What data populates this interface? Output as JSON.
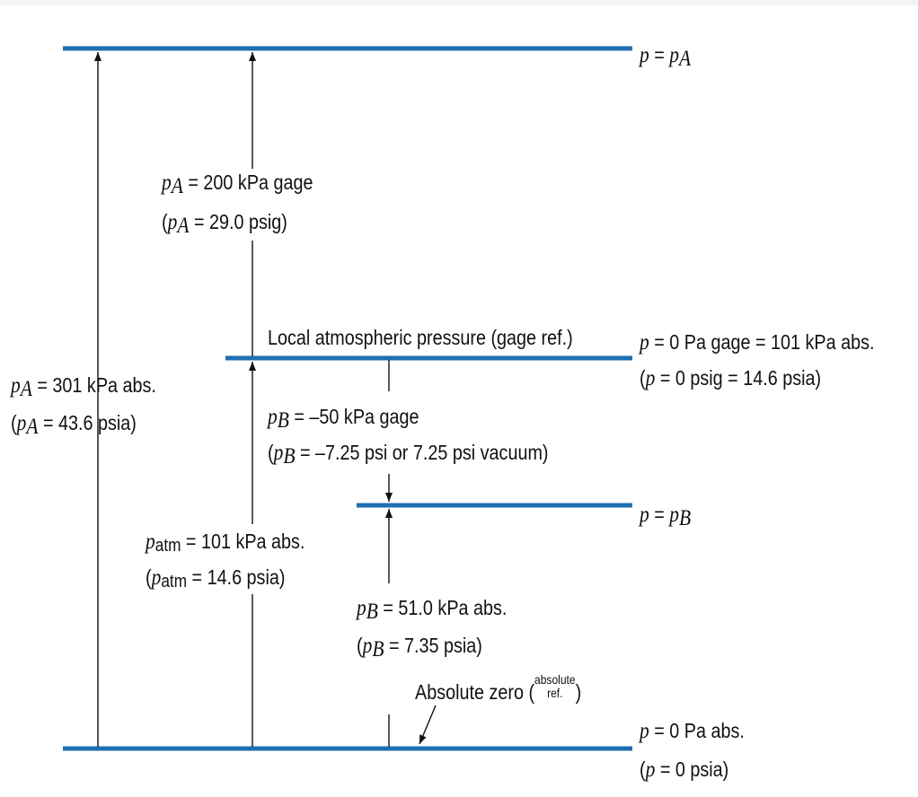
{
  "levels": {
    "pa": {
      "symbol": "p",
      "equals": " = ",
      "sub": "A"
    },
    "local": {
      "title": "Local atmospheric pressure (gage ref.)",
      "line1_prefix": " = 0 Pa gage = 101 kPa abs.",
      "line2_prefix": " = 0 psig = 14.6 psia)"
    },
    "pb": {
      "symbol": "p",
      "equals": " = ",
      "sub": "B"
    },
    "zero": {
      "title": "Absolute zero (",
      "title_small_top": "absolute",
      "title_small_bottom": "ref.",
      "title_close": ")",
      "line1": " = 0 Pa abs.",
      "line2": " = 0 psia)"
    }
  },
  "measures": {
    "pa_abs": {
      "line1": " = 301 kPa abs.",
      "line2": " = 43.6 psia)"
    },
    "pa_gage": {
      "line1": " = 200 kPa gage",
      "line2": " = 29.0 psig)"
    },
    "pb_gage": {
      "line1": " = –50 kPa gage",
      "line2": " = –7.25 psi or 7.25 psi vacuum)"
    },
    "patm_abs": {
      "sub": "atm",
      "line1": " = 101 kPa abs.",
      "line2": " = 14.6 psia)"
    },
    "pb_abs": {
      "line1": " = 51.0 kPa abs.",
      "line2": " = 7.35 psia)"
    }
  },
  "colors": {
    "level_line": "#1f6fb2",
    "arrow": "#111111"
  }
}
